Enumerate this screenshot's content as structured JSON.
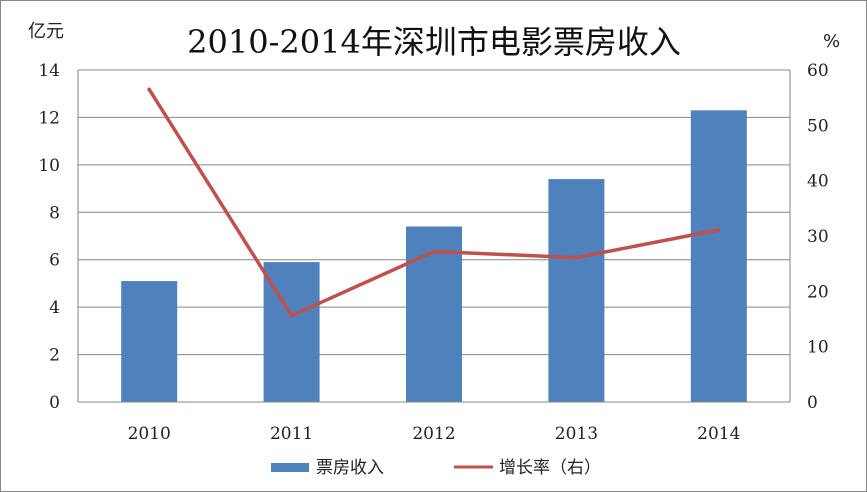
{
  "chart_data": {
    "type": "bar",
    "title": "2010-2014年深圳市电影票房收入",
    "categories": [
      "2010",
      "2011",
      "2012",
      "2013",
      "2014"
    ],
    "series": [
      {
        "name": "票房收入",
        "type": "bar",
        "axis": "left",
        "color": "#4F81BD",
        "values": [
          5.1,
          5.9,
          7.4,
          9.4,
          12.3
        ]
      },
      {
        "name": "增长率（右）",
        "type": "line",
        "axis": "right",
        "color": "#C0504D",
        "values": [
          56.5,
          15.6,
          27.2,
          26.1,
          31.1
        ]
      }
    ],
    "y_left": {
      "label": "亿元",
      "ylim": [
        0,
        14
      ],
      "ticks": [
        "0",
        "2",
        "4",
        "6",
        "8",
        "10",
        "12",
        "14"
      ]
    },
    "y_right": {
      "label": "%",
      "ylim": [
        0,
        60
      ],
      "ticks": [
        "0",
        "10",
        "20",
        "30",
        "40",
        "50",
        "60"
      ]
    },
    "grid": "horizontal",
    "legend_position": "bottom"
  }
}
